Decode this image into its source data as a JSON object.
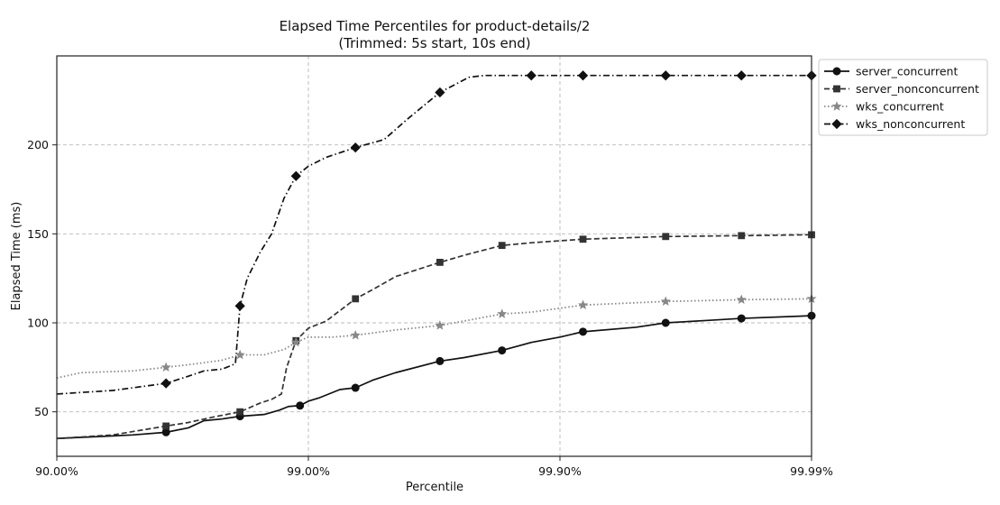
{
  "chart_data": {
    "type": "line",
    "title": "Elapsed Time Percentiles for product-details/2",
    "subtitle": "(Trimmed: 5s start, 10s end)",
    "xlabel": "Percentile",
    "ylabel": "Elapsed Time (ms)",
    "x_scale": "log-tail (nines)",
    "xlim": [
      90.0,
      99.99
    ],
    "ylim": [
      25,
      250
    ],
    "x_ticks": [
      {
        "value": 90.0,
        "label": "90.00%"
      },
      {
        "value": 99.0,
        "label": "99.00%"
      },
      {
        "value": 99.9,
        "label": "99.90%"
      },
      {
        "value": 99.99,
        "label": "99.99%"
      }
    ],
    "y_ticks": [
      {
        "value": 50,
        "label": "50"
      },
      {
        "value": 100,
        "label": "100"
      },
      {
        "value": 150,
        "label": "150"
      },
      {
        "value": 200,
        "label": "200"
      }
    ],
    "grid": true,
    "legend_position": "outside-top-right",
    "series": [
      {
        "name": "server_concurrent",
        "color": "#111111",
        "linestyle": "solid",
        "marker": "circle",
        "points": [
          [
            90.0,
            35
          ],
          [
            95.0,
            37
          ],
          [
            96.32,
            38.5
          ],
          [
            97.0,
            41
          ],
          [
            97.4,
            45
          ],
          [
            97.8,
            46
          ],
          [
            98.13,
            47.5
          ],
          [
            98.5,
            48.5
          ],
          [
            98.7,
            51
          ],
          [
            98.8,
            53
          ],
          [
            98.92,
            53.5
          ],
          [
            99.0,
            56
          ],
          [
            99.1,
            58
          ],
          [
            99.25,
            62.5
          ],
          [
            99.35,
            63.5
          ],
          [
            99.45,
            68
          ],
          [
            99.55,
            72
          ],
          [
            99.7,
            78.5
          ],
          [
            99.76,
            80.5
          ],
          [
            99.83,
            84.5
          ],
          [
            99.87,
            89
          ],
          [
            99.9,
            92
          ],
          [
            99.919,
            95
          ],
          [
            99.95,
            97.5
          ],
          [
            99.962,
            100
          ],
          [
            99.975,
            101.5
          ],
          [
            99.981,
            102.5
          ],
          [
            99.99,
            104
          ]
        ]
      },
      {
        "name": "server_nonconcurrent",
        "color": "#333333",
        "linestyle": "dashed",
        "marker": "square",
        "points": [
          [
            90.0,
            35
          ],
          [
            94.0,
            37
          ],
          [
            96.32,
            42
          ],
          [
            97.0,
            44
          ],
          [
            97.6,
            47
          ],
          [
            98.13,
            50
          ],
          [
            98.45,
            55
          ],
          [
            98.6,
            57
          ],
          [
            98.72,
            60
          ],
          [
            98.78,
            75
          ],
          [
            98.88,
            90
          ],
          [
            99.0,
            97
          ],
          [
            99.15,
            101
          ],
          [
            99.35,
            113.5
          ],
          [
            99.45,
            119
          ],
          [
            99.55,
            126
          ],
          [
            99.7,
            134
          ],
          [
            99.76,
            138
          ],
          [
            99.83,
            143.5
          ],
          [
            99.87,
            145
          ],
          [
            99.919,
            147
          ],
          [
            99.962,
            148.5
          ],
          [
            99.981,
            149
          ],
          [
            99.99,
            149.5
          ]
        ]
      },
      {
        "name": "wks_concurrent",
        "color": "#888888",
        "linestyle": "dotted",
        "marker": "star",
        "points": [
          [
            90.0,
            69
          ],
          [
            92.0,
            72
          ],
          [
            95.0,
            73
          ],
          [
            96.32,
            75
          ],
          [
            97.2,
            77
          ],
          [
            97.8,
            79
          ],
          [
            98.13,
            82
          ],
          [
            98.5,
            82
          ],
          [
            98.75,
            85
          ],
          [
            98.88,
            89
          ],
          [
            99.0,
            92
          ],
          [
            99.2,
            92
          ],
          [
            99.35,
            93
          ],
          [
            99.55,
            96
          ],
          [
            99.7,
            98.5
          ],
          [
            99.83,
            105
          ],
          [
            99.87,
            106
          ],
          [
            99.919,
            110
          ],
          [
            99.962,
            112
          ],
          [
            99.981,
            113
          ],
          [
            99.99,
            113.5
          ]
        ]
      },
      {
        "name": "wks_nonconcurrent",
        "color": "#111111",
        "linestyle": "dashdot",
        "marker": "diamond",
        "points": [
          [
            90.0,
            60
          ],
          [
            94.0,
            62
          ],
          [
            96.32,
            66
          ],
          [
            97.0,
            70
          ],
          [
            97.4,
            73
          ],
          [
            97.8,
            74
          ],
          [
            98.05,
            77
          ],
          [
            98.13,
            109.5
          ],
          [
            98.25,
            125
          ],
          [
            98.45,
            140
          ],
          [
            98.6,
            150
          ],
          [
            98.75,
            170
          ],
          [
            98.88,
            182.5
          ],
          [
            99.0,
            188
          ],
          [
            99.15,
            193
          ],
          [
            99.35,
            198.5
          ],
          [
            99.5,
            203
          ],
          [
            99.6,
            215
          ],
          [
            99.7,
            229.5
          ],
          [
            99.77,
            238
          ],
          [
            99.8,
            239
          ],
          [
            99.87,
            239
          ],
          [
            99.919,
            239
          ],
          [
            99.962,
            239
          ],
          [
            99.981,
            239
          ],
          [
            99.99,
            239
          ]
        ],
        "marker_points": [
          [
            96.32,
            66
          ],
          [
            98.13,
            109.5
          ],
          [
            98.88,
            182.5
          ],
          [
            99.35,
            198.5
          ],
          [
            99.7,
            229.5
          ],
          [
            99.87,
            239
          ],
          [
            99.919,
            239
          ],
          [
            99.962,
            239
          ],
          [
            99.981,
            239
          ],
          [
            99.99,
            239
          ]
        ]
      }
    ],
    "marker_points": {
      "server_concurrent": [
        [
          96.32,
          38.5
        ],
        [
          98.13,
          47.5
        ],
        [
          98.92,
          53.5
        ],
        [
          99.35,
          63.5
        ],
        [
          99.7,
          78.5
        ],
        [
          99.83,
          84.5
        ],
        [
          99.919,
          95
        ],
        [
          99.962,
          100
        ],
        [
          99.981,
          102.5
        ],
        [
          99.99,
          104
        ]
      ],
      "server_nonconcurrent": [
        [
          96.32,
          42
        ],
        [
          98.13,
          50
        ],
        [
          98.88,
          90
        ],
        [
          99.35,
          113.5
        ],
        [
          99.7,
          134
        ],
        [
          99.83,
          143.5
        ],
        [
          99.919,
          147
        ],
        [
          99.962,
          148.5
        ],
        [
          99.981,
          149
        ],
        [
          99.99,
          149.5
        ]
      ],
      "wks_concurrent": [
        [
          96.32,
          75
        ],
        [
          98.13,
          82
        ],
        [
          98.88,
          89
        ],
        [
          99.35,
          93
        ],
        [
          99.7,
          98.5
        ],
        [
          99.83,
          105
        ],
        [
          99.919,
          110
        ],
        [
          99.962,
          112
        ],
        [
          99.981,
          113
        ],
        [
          99.99,
          113.5
        ]
      ]
    }
  }
}
